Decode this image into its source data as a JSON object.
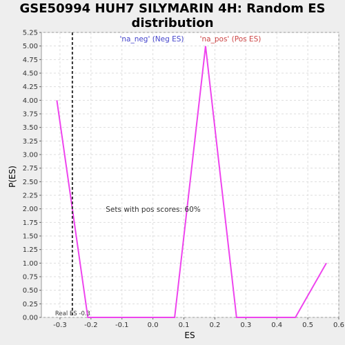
{
  "chart_data": {
    "type": "line",
    "title_lines": [
      "GSE50994 HUH7 SILYMARIN 4H: Random ES",
      "distribution"
    ],
    "xlabel": "ES",
    "ylabel": "P(ES)",
    "xlim": [
      -0.36,
      0.6
    ],
    "ylim": [
      0,
      5.25
    ],
    "xticks": [
      -0.3,
      -0.2,
      -0.1,
      0.0,
      0.1,
      0.2,
      0.3,
      0.4,
      0.5,
      0.6
    ],
    "xtick_labels": [
      "-0.3",
      "-0.2",
      "-0.1",
      "0.0",
      "0.1",
      "0.2",
      "0.3",
      "0.4",
      "0.5",
      "0.6"
    ],
    "yticks": [
      0,
      0.25,
      0.5,
      0.75,
      1.0,
      1.25,
      1.5,
      1.75,
      2.0,
      2.25,
      2.5,
      2.75,
      3.0,
      3.25,
      3.5,
      3.75,
      4.0,
      4.25,
      4.5,
      4.75,
      5.0,
      5.25
    ],
    "ytick_labels": [
      "0.00",
      "0.25",
      "0.50",
      "0.75",
      "1.00",
      "1.25",
      "1.50",
      "1.75",
      "2.00",
      "2.25",
      "2.50",
      "2.75",
      "3.00",
      "3.25",
      "3.50",
      "3.75",
      "4.00",
      "4.25",
      "4.50",
      "4.75",
      "5.00",
      "5.25"
    ],
    "grid": true,
    "series": [
      {
        "color": "#ee44ee",
        "x": [
          -0.31,
          -0.21,
          -0.11,
          -0.01,
          0.07,
          0.17,
          0.27,
          0.37,
          0.46,
          0.56
        ],
        "y": [
          4.0,
          0.0,
          0.0,
          0.0,
          0.0,
          5.0,
          0.0,
          0.0,
          0.0,
          1.0
        ]
      }
    ],
    "real_es": {
      "x": -0.26,
      "label": "Real ES -0.3"
    },
    "legend": [
      {
        "label": "'na_neg' (Neg ES)",
        "color": "#4444cc"
      },
      {
        "label": "'na_pos' (Pos ES)",
        "color": "#cc4444"
      }
    ],
    "annotation": "Sets with pos scores: 60%"
  }
}
